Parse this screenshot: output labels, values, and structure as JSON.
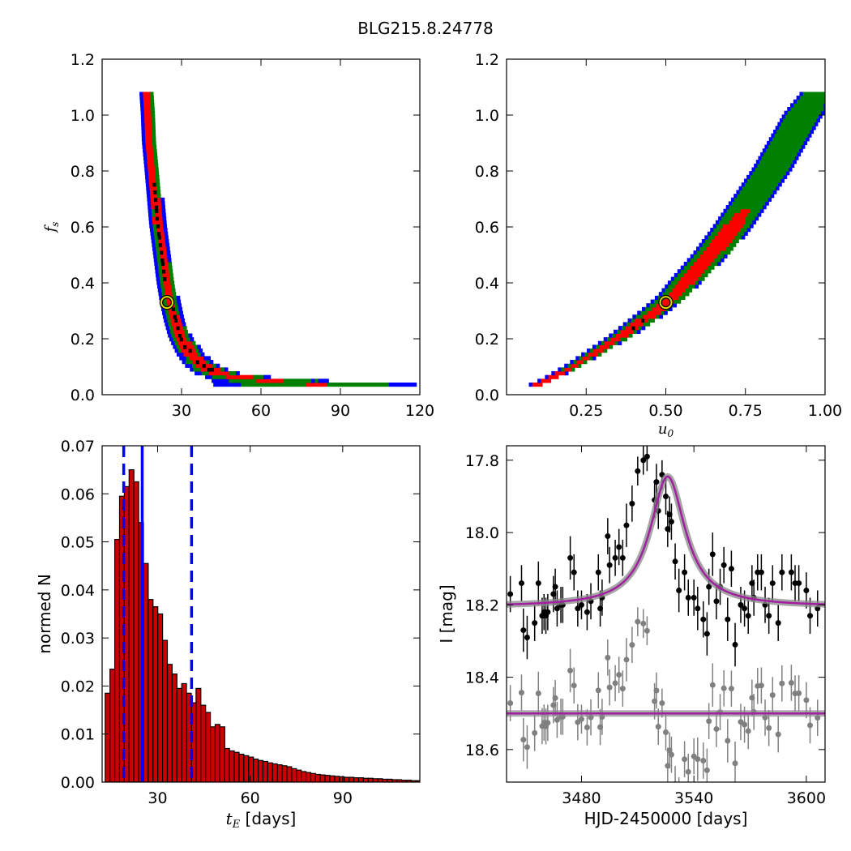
{
  "figure_title": "BLG215.8.24778",
  "chart_data": [
    {
      "type": "heatmap",
      "id": "fs_vs_tE",
      "xlabel": "",
      "ylabel": "f_s",
      "xlim": [
        0,
        120
      ],
      "ylim": [
        0.0,
        1.2
      ],
      "xticks": [
        30,
        60,
        90,
        120
      ],
      "xtick_labels": [
        "30",
        "60",
        "90",
        "120"
      ],
      "yticks": [
        0.0,
        0.2,
        0.4,
        0.6,
        0.8,
        1.0,
        1.2
      ],
      "ytick_labels": [
        "0.0",
        "0.2",
        "0.4",
        "0.6",
        "0.8",
        "1.0",
        "1.2"
      ],
      "colors": {
        "outer": "#0000ff",
        "middle": "#008000",
        "inner": "#ff0000",
        "core": "#000000"
      },
      "band": {
        "fs": [
          0.03,
          0.05,
          0.07,
          0.1,
          0.14,
          0.2,
          0.27,
          0.33,
          0.4,
          0.5,
          0.6,
          0.7,
          0.8,
          0.9,
          1.0,
          1.07
        ],
        "center_tE": [
          80,
          55,
          43,
          37,
          33,
          29,
          26.5,
          25,
          23.5,
          22,
          20.5,
          19.5,
          18.5,
          17.5,
          17,
          16.5
        ],
        "half_width_outer": [
          38,
          14,
          8,
          6,
          5,
          4,
          3.5,
          3.3,
          3,
          2.8,
          2.7,
          2.6,
          2.5,
          2.5,
          2.4,
          2.4
        ],
        "half_width_middle": [
          28,
          11,
          6,
          4.5,
          3.8,
          3.2,
          2.8,
          2.6,
          2.4,
          2.3,
          2.2,
          2.1,
          2.0,
          2.0,
          1.9,
          1.9
        ],
        "half_width_inner": [
          4,
          6,
          4,
          3,
          2.5,
          2,
          1.8,
          1.6,
          1.5,
          1.4,
          1.4,
          1.3,
          1.3,
          1.2,
          1.2,
          1.2
        ]
      },
      "best_fit": {
        "x": 24.5,
        "y": 0.33
      }
    },
    {
      "type": "heatmap",
      "id": "fs_vs_u0",
      "xlabel": "u_0",
      "ylabel": "",
      "xlim": [
        0.0,
        1.0
      ],
      "ylim": [
        0.0,
        1.2
      ],
      "xticks": [
        0.25,
        0.5,
        0.75,
        1.0
      ],
      "xtick_labels": [
        "0.25",
        "0.50",
        "0.75",
        "1.00"
      ],
      "yticks": [
        0.0,
        0.2,
        0.4,
        0.6,
        0.8,
        1.0,
        1.2
      ],
      "ytick_labels": [
        "0.0",
        "0.2",
        "0.4",
        "0.6",
        "0.8",
        "1.0",
        "1.2"
      ],
      "colors": {
        "outer": "#0000ff",
        "middle": "#008000",
        "inner": "#ff0000",
        "core": "#000000"
      },
      "band": {
        "fs": [
          0.03,
          0.05,
          0.1,
          0.15,
          0.2,
          0.25,
          0.3,
          0.35,
          0.4,
          0.5,
          0.6,
          0.7,
          0.8,
          0.9,
          1.0,
          1.07
        ],
        "center_u0": [
          0.09,
          0.13,
          0.21,
          0.28,
          0.35,
          0.41,
          0.47,
          0.52,
          0.56,
          0.64,
          0.71,
          0.77,
          0.83,
          0.88,
          0.93,
          0.97
        ],
        "half_width_outer": [
          0.02,
          0.02,
          0.025,
          0.03,
          0.035,
          0.04,
          0.045,
          0.045,
          0.05,
          0.055,
          0.06,
          0.06,
          0.06,
          0.06,
          0.06,
          0.05
        ],
        "half_width_middle": [
          0.015,
          0.018,
          0.02,
          0.025,
          0.03,
          0.035,
          0.038,
          0.04,
          0.045,
          0.05,
          0.05,
          0.05,
          0.05,
          0.05,
          0.05,
          0.045
        ],
        "half_width_inner": [
          0.012,
          0.012,
          0.013,
          0.015,
          0.017,
          0.02,
          0.022,
          0.024,
          0.026,
          0.028,
          0.03,
          0.0,
          0.0,
          0.0,
          0.0,
          0.0
        ]
      },
      "best_fit": {
        "x": 0.5,
        "y": 0.33
      }
    },
    {
      "type": "bar",
      "id": "tE_histogram",
      "xlabel": "t_E",
      "xlabel_suffix": " [days]",
      "ylabel": "normed N",
      "xlim": [
        12,
        115
      ],
      "ylim": [
        0.0,
        0.07
      ],
      "xticks": [
        30,
        60,
        90
      ],
      "xtick_labels": [
        "30",
        "60",
        "90"
      ],
      "yticks": [
        0.0,
        0.01,
        0.02,
        0.03,
        0.04,
        0.05,
        0.06,
        0.07
      ],
      "ytick_labels": [
        "0.00",
        "0.01",
        "0.02",
        "0.03",
        "0.04",
        "0.05",
        "0.06",
        "0.07"
      ],
      "bin_start": 13,
      "bin_width": 1.55,
      "values": [
        0.0185,
        0.0235,
        0.0505,
        0.0595,
        0.0615,
        0.065,
        0.0625,
        0.054,
        0.0455,
        0.038,
        0.0365,
        0.035,
        0.0295,
        0.0245,
        0.0225,
        0.0195,
        0.0205,
        0.0185,
        0.0165,
        0.0195,
        0.016,
        0.0145,
        0.0115,
        0.012,
        0.0115,
        0.007,
        0.0065,
        0.0062,
        0.0058,
        0.0055,
        0.0052,
        0.0048,
        0.0045,
        0.0043,
        0.004,
        0.0038,
        0.0036,
        0.0034,
        0.0032,
        0.0028,
        0.0025,
        0.0022,
        0.002,
        0.0018,
        0.0016,
        0.0015,
        0.0014,
        0.0013,
        0.0012,
        0.0011,
        0.001,
        0.001,
        0.0009,
        0.0009,
        0.0008,
        0.0008,
        0.0007,
        0.0007,
        0.0006,
        0.0006,
        0.0005,
        0.0005,
        0.0004,
        0.0004,
        0.0003,
        0.0003
      ],
      "bar_color": "#cc0000",
      "vlines": {
        "median": 25,
        "lower": 19,
        "upper": 41,
        "color": "#0000ff"
      }
    },
    {
      "type": "scatter",
      "id": "light_curve",
      "xlabel": "HJD-2450000 [days]",
      "ylabel": "I [mag]",
      "xlim": [
        3440,
        3610
      ],
      "ylim": [
        18.69,
        17.76
      ],
      "xticks": [
        3480,
        3540,
        3600
      ],
      "xtick_labels": [
        "3480",
        "3540",
        "3600"
      ],
      "yticks": [
        17.8,
        18.0,
        18.2,
        18.4,
        18.6
      ],
      "ytick_labels": [
        "17.8",
        "18.0",
        "18.2",
        "18.4",
        "18.6"
      ],
      "model": {
        "baseline": 18.205,
        "peak_mag": 17.845,
        "t0": 3526,
        "tE": 10.5,
        "color": "#a020a0"
      },
      "residual_offset": 18.5,
      "data_color": "#000000",
      "residual_color": "#808080",
      "points": {
        "x": [
          3442,
          3448,
          3449,
          3451,
          3455,
          3457,
          3459,
          3460,
          3461,
          3462,
          3465,
          3466,
          3467,
          3469,
          3470,
          3474,
          3476,
          3478,
          3480,
          3483,
          3485,
          3489,
          3490,
          3491,
          3494,
          3495,
          3498,
          3500,
          3502,
          3504,
          3507,
          3510,
          3513,
          3515,
          3519,
          3520,
          3521,
          3523,
          3525,
          3526,
          3527,
          3528,
          3530,
          3532,
          3535,
          3537,
          3540,
          3542,
          3545,
          3547,
          3548,
          3550,
          3552,
          3554,
          3556,
          3558,
          3560,
          3562,
          3565,
          3567,
          3569,
          3571,
          3572,
          3574,
          3576,
          3578,
          3580,
          3582,
          3585,
          3587,
          3592,
          3594,
          3596,
          3600,
          3602,
          3606
        ],
        "y": [
          18.17,
          18.14,
          18.27,
          18.29,
          18.25,
          18.14,
          18.23,
          18.22,
          18.23,
          18.22,
          18.17,
          18.15,
          18.21,
          18.2,
          18.2,
          18.07,
          18.11,
          18.21,
          18.2,
          18.22,
          18.19,
          18.11,
          18.21,
          18.18,
          18.01,
          18.09,
          18.07,
          18.04,
          18.07,
          17.98,
          17.92,
          17.83,
          17.8,
          17.79,
          17.91,
          17.86,
          17.94,
          17.84,
          17.9,
          17.99,
          17.95,
          17.97,
          18.08,
          18.16,
          18.11,
          18.18,
          18.18,
          18.21,
          18.24,
          18.28,
          18.15,
          18.06,
          18.19,
          18.15,
          18.09,
          18.24,
          18.1,
          18.31,
          18.2,
          18.21,
          18.23,
          18.14,
          18.18,
          18.11,
          18.11,
          18.2,
          18.23,
          18.14,
          18.25,
          18.11,
          18.11,
          18.14,
          18.14,
          18.16,
          18.23,
          18.21
        ],
        "err": [
          0.05,
          0.05,
          0.06,
          0.06,
          0.05,
          0.06,
          0.05,
          0.05,
          0.05,
          0.05,
          0.05,
          0.05,
          0.05,
          0.05,
          0.05,
          0.06,
          0.05,
          0.05,
          0.04,
          0.05,
          0.05,
          0.05,
          0.05,
          0.05,
          0.05,
          0.05,
          0.05,
          0.05,
          0.05,
          0.06,
          0.05,
          0.04,
          0.04,
          0.04,
          0.05,
          0.05,
          0.05,
          0.04,
          0.05,
          0.05,
          0.05,
          0.05,
          0.05,
          0.06,
          0.05,
          0.05,
          0.05,
          0.06,
          0.05,
          0.06,
          0.05,
          0.06,
          0.05,
          0.05,
          0.05,
          0.06,
          0.05,
          0.06,
          0.05,
          0.05,
          0.05,
          0.05,
          0.05,
          0.05,
          0.05,
          0.05,
          0.05,
          0.05,
          0.05,
          0.05,
          0.05,
          0.05,
          0.05,
          0.05,
          0.05,
          0.05
        ]
      }
    }
  ]
}
